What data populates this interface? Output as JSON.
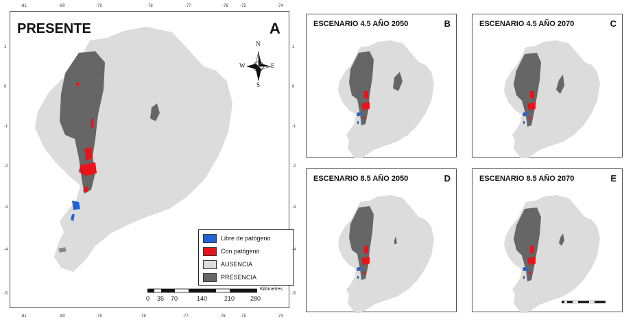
{
  "panels": [
    {
      "id": "A",
      "title": "PRESENTE",
      "letter": "A"
    },
    {
      "id": "B",
      "title": "ESCENARIO 4.5 AÑO 2050",
      "letter": "B"
    },
    {
      "id": "C",
      "title": "ESCENARIO 4.5 AÑO 2070",
      "letter": "C"
    },
    {
      "id": "D",
      "title": "ESCENARIO 8.5 AÑO 2050",
      "letter": "D"
    },
    {
      "id": "E",
      "title": "ESCENARIO 8.5 AÑO 2070",
      "letter": "E"
    }
  ],
  "longitude_ticks": [
    "-81",
    "-80",
    "-79",
    "-78",
    "-77",
    "-76",
    "-75",
    "-74"
  ],
  "latitude_ticks": [
    "1",
    "0",
    "-1",
    "-2",
    "-3",
    "-4",
    "-5"
  ],
  "legend": {
    "items": [
      {
        "label": "Libre de patógeno",
        "color": "#1f63d9"
      },
      {
        "label": "Con patógeno",
        "color": "#e8141b"
      },
      {
        "label": "AUSENCIA",
        "color": "#dcdcdc"
      },
      {
        "label": "PRESENCIA",
        "color": "#666666"
      }
    ]
  },
  "scale_bar": {
    "unit": "Kilómetres",
    "ticks": [
      "0",
      "35",
      "70",
      "140",
      "210",
      "280"
    ]
  },
  "compass": {
    "n": "N",
    "s": "S",
    "e": "E",
    "w": "W"
  },
  "colors": {
    "ausencia": "#dcdcdc",
    "presencia": "#666666",
    "con_patogeno": "#e8141b",
    "libre_patogeno": "#1f63d9"
  }
}
